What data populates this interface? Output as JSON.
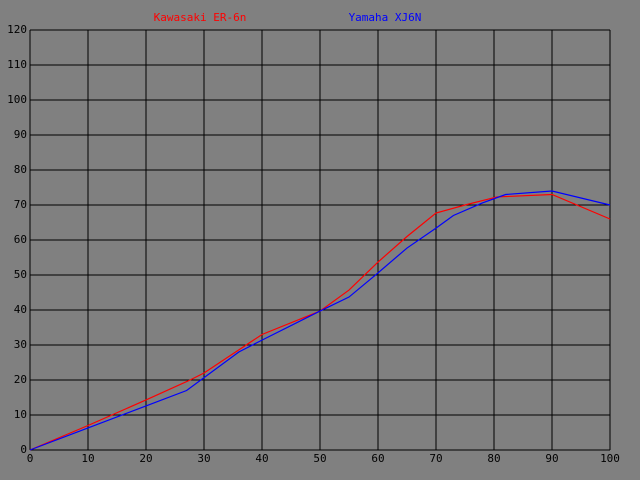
{
  "chart_data": {
    "type": "line",
    "series": [
      {
        "name": "Kawasaki ER-6n",
        "color": "#ff0000",
        "x": [
          0,
          10,
          20,
          27.6,
          30,
          40,
          50,
          55,
          60,
          65,
          70,
          75,
          80.5,
          90,
          100
        ],
        "values": [
          0,
          7,
          14.3,
          20,
          22,
          33,
          39.7,
          45.7,
          53.7,
          61,
          67.7,
          70,
          72.3,
          73,
          66
        ]
      },
      {
        "name": "Yamaha XJ6N",
        "color": "#0000ff",
        "x": [
          0,
          10,
          20,
          27,
          36,
          40,
          50,
          55,
          60,
          65,
          70,
          73,
          78,
          82,
          90,
          100
        ],
        "values": [
          0,
          6.3,
          12.6,
          17,
          28,
          31.4,
          39.7,
          43.7,
          50.6,
          57.7,
          63.4,
          67,
          70.6,
          73,
          74,
          70
        ]
      }
    ],
    "xlim": [
      0,
      100
    ],
    "xticks": [
      0,
      10,
      20,
      30,
      40,
      50,
      60,
      70,
      80,
      90,
      100
    ],
    "ylim": [
      0,
      120
    ],
    "yticks": [
      0,
      10,
      20,
      30,
      40,
      50,
      60,
      70,
      80,
      90,
      100,
      110,
      120
    ],
    "grid": true
  }
}
